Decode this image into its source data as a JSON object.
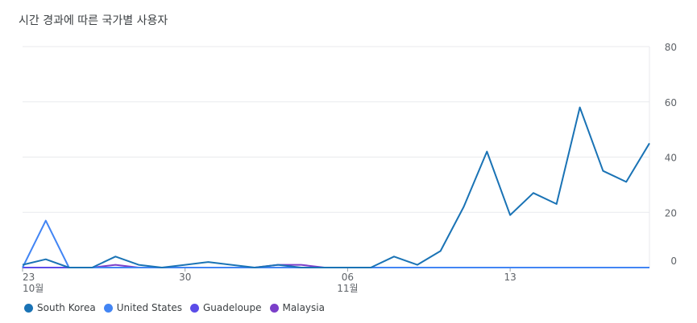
{
  "chart_data": {
    "type": "line",
    "title": "시간 경과에 따른 국가별 사용자",
    "x_labels": [
      {
        "index": 0,
        "day": "23",
        "month": "10월"
      },
      {
        "index": 7,
        "day": "30",
        "month": ""
      },
      {
        "index": 14,
        "day": "06",
        "month": "11월"
      },
      {
        "index": 21,
        "day": "13",
        "month": ""
      }
    ],
    "n_points": 28,
    "y_ticks": [
      0,
      20,
      40,
      60,
      80
    ],
    "ylim": [
      0,
      80
    ],
    "legend_position": "bottom-left",
    "series": [
      {
        "name": "South Korea",
        "color": "#1a73b5",
        "values": [
          1,
          3,
          0,
          0,
          4,
          1,
          0,
          1,
          2,
          1,
          0,
          1,
          0,
          0,
          0,
          0,
          4,
          1,
          6,
          22,
          42,
          19,
          27,
          23,
          58,
          35,
          31,
          45
        ]
      },
      {
        "name": "United States",
        "color": "#4285f4",
        "values": [
          0,
          17,
          0,
          0,
          0,
          0,
          0,
          0,
          0,
          0,
          0,
          0,
          0,
          0,
          0,
          0,
          0,
          0,
          0,
          0,
          0,
          0,
          0,
          0,
          0,
          0,
          0,
          0
        ]
      },
      {
        "name": "Guadeloupe",
        "color": "#5b4ce8",
        "values": [
          0,
          0,
          0,
          0,
          0,
          0,
          0,
          0,
          0,
          0,
          0,
          0,
          0,
          0,
          0,
          0,
          0,
          0,
          0,
          0,
          0,
          0,
          0,
          0,
          0,
          0,
          0,
          0
        ]
      },
      {
        "name": "Malaysia",
        "color": "#7b3fc9",
        "values": [
          0,
          0,
          0,
          0,
          1,
          0,
          0,
          0,
          0,
          0,
          0,
          1,
          1,
          0,
          0,
          0,
          0,
          0,
          0,
          0,
          0,
          0,
          0,
          0,
          0,
          0,
          0,
          0
        ]
      }
    ]
  }
}
